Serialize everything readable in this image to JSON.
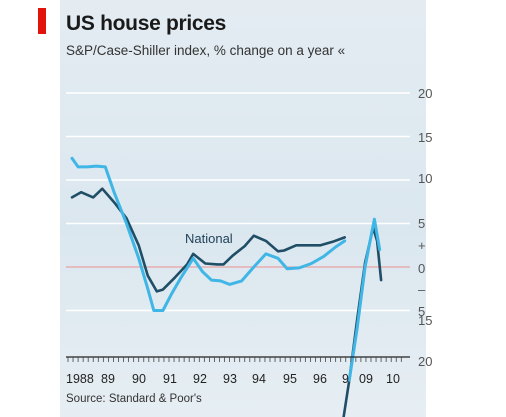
{
  "chart_data": {
    "type": "line",
    "title": "US house prices",
    "subtitle": "S&P/Case-Shiller index, % change on a year «",
    "source": "Source: Standard & Poor's",
    "annotation": "National",
    "ylim": [
      -20,
      20
    ],
    "yticks": [
      "20",
      "15",
      "10",
      "5",
      "+",
      "0",
      "–",
      "5",
      "15",
      "20"
    ],
    "xticks": [
      "1988",
      "89",
      "90",
      "91",
      "92",
      "93",
      "94",
      "95",
      "96",
      "9",
      "09",
      "10"
    ],
    "grid": true,
    "legend": "none",
    "colors": {
      "national": "#1f4e66",
      "composite": "#3fb6e6",
      "zero_line": "#e9a2a2",
      "grid": "#ffffff"
    },
    "series": [
      {
        "name": "National",
        "color": "#1f4e66",
        "points": [
          [
            1988.0,
            8.0
          ],
          [
            1988.3,
            8.6
          ],
          [
            1988.7,
            8.0
          ],
          [
            1989.0,
            9.0
          ],
          [
            1989.4,
            7.4
          ],
          [
            1989.8,
            5.6
          ],
          [
            1990.2,
            2.5
          ],
          [
            1990.5,
            -1.0
          ],
          [
            1990.8,
            -2.8
          ],
          [
            1991.0,
            -2.6
          ],
          [
            1991.4,
            -1.2
          ],
          [
            1991.8,
            0.3
          ],
          [
            1992.0,
            1.5
          ],
          [
            1992.4,
            0.4
          ],
          [
            1992.8,
            0.3
          ],
          [
            1993.0,
            0.3
          ],
          [
            1993.3,
            1.3
          ],
          [
            1993.7,
            2.4
          ],
          [
            1994.0,
            3.6
          ],
          [
            1994.4,
            3.0
          ],
          [
            1994.8,
            1.8
          ],
          [
            1995.0,
            1.9
          ],
          [
            1995.4,
            2.5
          ],
          [
            1995.8,
            2.5
          ],
          [
            1996.2,
            2.5
          ],
          [
            1996.6,
            2.9
          ],
          [
            1997.0,
            3.4
          ],
          [
            2008.75,
            -18.0
          ],
          [
            2009.0,
            -13.0
          ],
          [
            2009.3,
            -6.0
          ],
          [
            2009.6,
            0.5
          ],
          [
            2009.9,
            4.5
          ],
          [
            2010.05,
            3.0
          ],
          [
            2010.2,
            -1.5
          ]
        ]
      },
      {
        "name": "",
        "color": "#3fb6e6",
        "points": [
          [
            1988.0,
            12.5
          ],
          [
            1988.2,
            11.5
          ],
          [
            1988.5,
            11.5
          ],
          [
            1988.8,
            11.6
          ],
          [
            1989.1,
            11.5
          ],
          [
            1989.4,
            8.5
          ],
          [
            1989.8,
            5.0
          ],
          [
            1990.2,
            1.0
          ],
          [
            1990.5,
            -2.5
          ],
          [
            1990.7,
            -5.0
          ],
          [
            1991.0,
            -5.0
          ],
          [
            1991.3,
            -3.0
          ],
          [
            1991.6,
            -1.2
          ],
          [
            1992.0,
            1.0
          ],
          [
            1992.3,
            -0.5
          ],
          [
            1992.6,
            -1.5
          ],
          [
            1992.9,
            -1.6
          ],
          [
            1993.2,
            -2.0
          ],
          [
            1993.6,
            -1.6
          ],
          [
            1994.0,
            0.0
          ],
          [
            1994.4,
            1.5
          ],
          [
            1994.8,
            1.0
          ],
          [
            1995.1,
            -0.2
          ],
          [
            1995.5,
            -0.1
          ],
          [
            1995.9,
            0.4
          ],
          [
            1996.3,
            1.2
          ],
          [
            1996.7,
            2.3
          ],
          [
            1997.0,
            3.0
          ],
          [
            2009.0,
            -13.0
          ],
          [
            2009.3,
            -7.0
          ],
          [
            2009.6,
            0.0
          ],
          [
            2009.85,
            4.0
          ],
          [
            2009.95,
            5.5
          ],
          [
            2010.15,
            2.0
          ]
        ]
      }
    ]
  }
}
